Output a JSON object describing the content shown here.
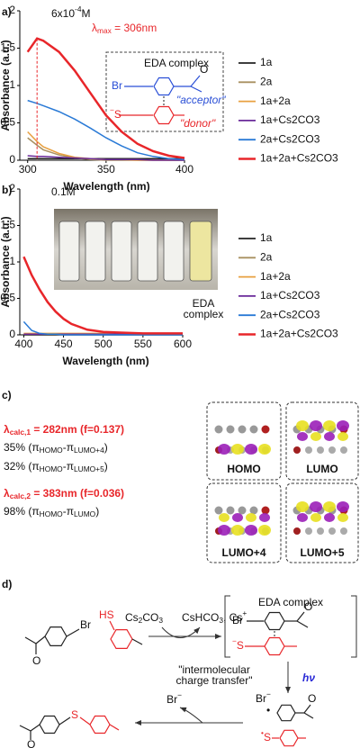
{
  "chart_data": [
    {
      "type": "line",
      "panel_label": "a)",
      "x_label": "Wavelength (nm)",
      "y_label": "Absorbance (a.u.)",
      "x": [
        300,
        306,
        310,
        320,
        330,
        340,
        350,
        360,
        370,
        380,
        390,
        400
      ],
      "xlim": [
        295,
        400
      ],
      "xticks": [
        300,
        350,
        400
      ],
      "ylim": [
        0,
        2
      ],
      "yticks": [
        0,
        0.5,
        1,
        1.5,
        2
      ],
      "legend": "right",
      "series": [
        {
          "name": "1a",
          "color": "#222222",
          "values": [
            0.02,
            0.02,
            0.02,
            0.02,
            0.02,
            0.02,
            0.02,
            0.02,
            0.02,
            0.02,
            0.02,
            0.02
          ]
        },
        {
          "name": "2a",
          "color": "#a89060",
          "values": [
            0.3,
            0.2,
            0.14,
            0.07,
            0.03,
            0.01,
            0,
            0,
            0,
            0,
            0,
            0
          ]
        },
        {
          "name": "1a+2a",
          "color": "#e8a040",
          "values": [
            0.38,
            0.25,
            0.18,
            0.09,
            0.04,
            0.02,
            0.01,
            0.01,
            0,
            0,
            0,
            0
          ]
        },
        {
          "name": "1a+Cs2CO3",
          "color": "#6a2a9a",
          "values": [
            0.06,
            0.05,
            0.05,
            0.04,
            0.03,
            0.02,
            0.01,
            0.01,
            0.01,
            0,
            0,
            0
          ]
        },
        {
          "name": "2a+Cs2CO3",
          "color": "#2a7ad6",
          "values": [
            0.8,
            0.76,
            0.73,
            0.65,
            0.55,
            0.43,
            0.3,
            0.19,
            0.1,
            0.05,
            0.02,
            0.01
          ]
        },
        {
          "name": "1a+2a+Cs2CO3",
          "color": "#e8262a",
          "values": [
            1.45,
            1.63,
            1.6,
            1.45,
            1.2,
            0.9,
            0.6,
            0.38,
            0.22,
            0.12,
            0.06,
            0.03
          ]
        }
      ],
      "concentration": [
        "6x10",
        "-4",
        "M"
      ],
      "lambda_max": [
        "λ",
        "max",
        " = 306nm"
      ],
      "inset": {
        "title": "EDA complex",
        "br": "Br",
        "o": "O",
        "acceptor": "\"acceptor\"",
        "s": "S",
        "s_charge": "−",
        "donor": "\"donor\""
      }
    },
    {
      "type": "line",
      "panel_label": "b)",
      "x_label": "Wavelength (nm)",
      "y_label": "Absorbance (a.u.)",
      "x": [
        400,
        410,
        420,
        430,
        440,
        450,
        460,
        480,
        500,
        550,
        600
      ],
      "xlim": [
        395,
        600
      ],
      "xticks": [
        400,
        450,
        500,
        550,
        600
      ],
      "ylim": [
        0,
        2
      ],
      "yticks": [
        0,
        0.5,
        1,
        1.5,
        2
      ],
      "legend": "right",
      "series": [
        {
          "name": "1a",
          "color": "#222222",
          "values": [
            0,
            0,
            0,
            0,
            0,
            0,
            0,
            0,
            0,
            0,
            0
          ]
        },
        {
          "name": "2a",
          "color": "#a89060",
          "values": [
            0.01,
            0.01,
            0.01,
            0.01,
            0.01,
            0.01,
            0.01,
            0.01,
            0.01,
            0.01,
            0.01
          ]
        },
        {
          "name": "1a+2a",
          "color": "#e8a040",
          "values": [
            0.02,
            0.02,
            0.02,
            0.02,
            0.02,
            0.02,
            0.02,
            0.02,
            0.02,
            0.02,
            0.02
          ]
        },
        {
          "name": "1a+Cs2CO3",
          "color": "#6a2a9a",
          "values": [
            0.01,
            0.01,
            0.01,
            0.01,
            0.01,
            0.01,
            0.01,
            0.01,
            0.01,
            0.01,
            0.01
          ]
        },
        {
          "name": "2a+Cs2CO3",
          "color": "#2a7ad6",
          "values": [
            0.18,
            0.06,
            0.02,
            0.01,
            0.01,
            0,
            0,
            0,
            0,
            0,
            0
          ]
        },
        {
          "name": "1a+2a+Cs2CO3",
          "color": "#e8262a",
          "values": [
            1.07,
            0.82,
            0.62,
            0.45,
            0.32,
            0.22,
            0.15,
            0.07,
            0.04,
            0.02,
            0.02
          ]
        }
      ],
      "concentration": [
        "0.1M"
      ],
      "photo_caption": [
        "EDA",
        "complex"
      ]
    }
  ],
  "panel_c": {
    "label": "c)",
    "transitions": [
      {
        "lambda": [
          "λ",
          "calc,1",
          " = 282nm (f=0.137)"
        ],
        "contributions": [
          [
            "35% (π",
            "HOMO",
            "-π",
            "LUMO+4",
            ")"
          ],
          [
            "32% (π",
            "HOMO",
            "-π",
            "LUMO+5",
            ")"
          ]
        ]
      },
      {
        "lambda": [
          "λ",
          "calc,2",
          " = 383nm (f=0.036)"
        ],
        "contributions": [
          [
            "98% (π",
            "HOMO",
            "-π",
            "LUMO",
            ")"
          ]
        ]
      }
    ],
    "orbitals": [
      "HOMO",
      "LUMO",
      "LUMO+4",
      "LUMO+5"
    ]
  },
  "panel_d": {
    "label": "d)",
    "substrate_br": "Br",
    "substrate_o": "O",
    "thiol": "HS",
    "base": [
      "Cs",
      "2",
      "CO",
      "3"
    ],
    "byproducts": [
      "CsHCO",
      "3",
      ", Cs",
      "+"
    ],
    "complex": {
      "title": "EDA complex",
      "br": "Br",
      "o": "O",
      "s": "S",
      "s_charge": "−"
    },
    "process": [
      "\"intermolecular",
      "charge transfer\""
    ],
    "light": "hν",
    "radicals": {
      "br": "Br",
      "br_charge": "−",
      "br_dot": "•",
      "o": "O",
      "s_dot": "•",
      "s": "S"
    },
    "leaving": [
      "Br",
      "−"
    ],
    "product": {
      "s": "S",
      "o": "O"
    }
  }
}
